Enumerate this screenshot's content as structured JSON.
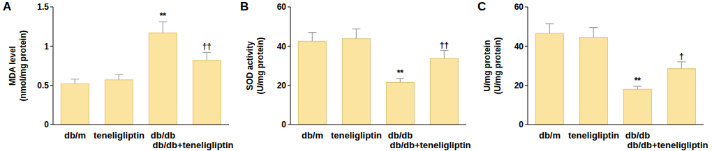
{
  "chart_data": [
    {
      "type": "bar",
      "title": "A",
      "ylabel": [
        "MDA level",
        "(nmol/mg protein)"
      ],
      "categories": [
        "db/m",
        "teneligliptin",
        "db/db",
        "db/db+teneligliptin"
      ],
      "values": [
        0.52,
        0.57,
        1.17,
        0.82
      ],
      "errors": [
        0.06,
        0.07,
        0.14,
        0.1
      ],
      "annotations": [
        null,
        null,
        "**",
        "††"
      ],
      "ylim": [
        0,
        1.5
      ],
      "yticks": [
        0,
        0.5,
        1,
        1.5
      ],
      "color": "#fbe3a0"
    },
    {
      "type": "bar",
      "title": "B",
      "ylabel": [
        "SOD activity",
        "(U/mg protein)"
      ],
      "categories": [
        "db/m",
        "teneligliptin",
        "db/db",
        "db/db+teneligliptin"
      ],
      "values": [
        42.5,
        43.8,
        21.5,
        33.8
      ],
      "errors": [
        4.5,
        5,
        2,
        4
      ],
      "annotations": [
        null,
        null,
        "**",
        "††"
      ],
      "ylim": [
        0,
        60
      ],
      "yticks": [
        0,
        20,
        40,
        60
      ],
      "color": "#fbe3a0"
    },
    {
      "type": "bar",
      "title": "C",
      "ylabel": [
        "U/mg protein",
        "(U/mg protein)"
      ],
      "categories": [
        "db/m",
        "teneligliptin",
        "db/db",
        "db/db+teneligliptin"
      ],
      "values": [
        46.5,
        44.5,
        18,
        28.5
      ],
      "errors": [
        5,
        5,
        1.5,
        3.5
      ],
      "annotations": [
        null,
        null,
        "**",
        "†"
      ],
      "ylim": [
        0,
        60
      ],
      "yticks": [
        0,
        20,
        40,
        60
      ],
      "color": "#fbe3a0"
    }
  ]
}
